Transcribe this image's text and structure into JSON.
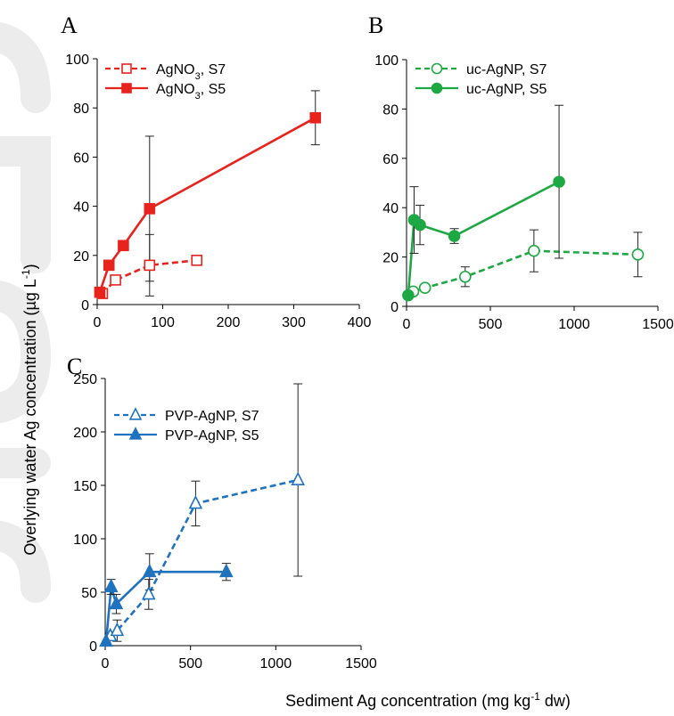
{
  "figure": {
    "y_axis_title": "Overlying water Ag concentration (µg L",
    "y_axis_title_sup": "-1",
    "y_axis_title_end": ")",
    "x_axis_title": "Sediment Ag concentration (mg kg",
    "x_axis_title_sup": "-1",
    "x_axis_title_end": " dw)"
  },
  "chart_data": [
    {
      "id": "A",
      "panel_label": "A",
      "type": "scatter",
      "xlim": [
        0,
        400
      ],
      "ylim": [
        0,
        100
      ],
      "xticks": [
        0,
        100,
        200,
        300,
        400
      ],
      "yticks": [
        0,
        20,
        40,
        60,
        80,
        100
      ],
      "xtick_labels": [
        "0",
        "100",
        "200",
        "300",
        "400"
      ],
      "ytick_labels": [
        "0",
        "20",
        "40",
        "60",
        "80",
        "100"
      ],
      "color": "#e8231e",
      "series": [
        {
          "name": "AgNO",
          "name_sub": "3",
          "name_suffix": ", S7",
          "marker": "square",
          "filled": false,
          "dashed": true,
          "points": [
            {
              "x": 8,
              "y": 4.5
            },
            {
              "x": 28,
              "y": 10
            },
            {
              "x": 80,
              "y": 16,
              "err_lo": 12.5,
              "err_hi": 12.5
            },
            {
              "x": 152,
              "y": 18
            }
          ]
        },
        {
          "name": "AgNO",
          "name_sub": "3",
          "name_suffix": ", S5",
          "marker": "square",
          "filled": true,
          "dashed": false,
          "points": [
            {
              "x": 4,
              "y": 5
            },
            {
              "x": 18,
              "y": 16
            },
            {
              "x": 40,
              "y": 24
            },
            {
              "x": 80,
              "y": 39,
              "err_lo": 29.5,
              "err_hi": 29.5
            },
            {
              "x": 333,
              "y": 76,
              "err_lo": 11,
              "err_hi": 11
            }
          ]
        }
      ]
    },
    {
      "id": "B",
      "panel_label": "B",
      "type": "scatter",
      "xlim": [
        0,
        1500
      ],
      "ylim": [
        0,
        100
      ],
      "xticks": [
        0,
        500,
        1000,
        1500
      ],
      "yticks": [
        0,
        20,
        40,
        60,
        80,
        100
      ],
      "xtick_labels": [
        "0",
        "500",
        "1000",
        "1500"
      ],
      "ytick_labels": [
        "0",
        "20",
        "40",
        "60",
        "80",
        "100"
      ],
      "color": "#1ea843",
      "series": [
        {
          "name": "uc-AgNP",
          "name_sub": "",
          "name_suffix": ", S7",
          "marker": "circle",
          "filled": false,
          "dashed": true,
          "points": [
            {
              "x": 40,
              "y": 6
            },
            {
              "x": 110,
              "y": 7.5
            },
            {
              "x": 350,
              "y": 12,
              "err_lo": 4,
              "err_hi": 4
            },
            {
              "x": 760,
              "y": 22.5,
              "err_lo": 8.5,
              "err_hi": 8.5
            },
            {
              "x": 1380,
              "y": 21,
              "err_lo": 9,
              "err_hi": 9
            }
          ]
        },
        {
          "name": "uc-AgNP",
          "name_sub": "",
          "name_suffix": ", S5",
          "marker": "circle",
          "filled": true,
          "dashed": false,
          "points": [
            {
              "x": 10,
              "y": 4.5
            },
            {
              "x": 45,
              "y": 35,
              "err_lo": 13.5,
              "err_hi": 13.5
            },
            {
              "x": 80,
              "y": 33,
              "err_lo": 8,
              "err_hi": 8
            },
            {
              "x": 285,
              "y": 28.5,
              "err_lo": 3,
              "err_hi": 3
            },
            {
              "x": 910,
              "y": 50.5,
              "err_lo": 31,
              "err_hi": 31
            }
          ]
        }
      ]
    },
    {
      "id": "C",
      "panel_label": "C",
      "type": "scatter",
      "xlim": [
        0,
        1500
      ],
      "ylim": [
        0,
        250
      ],
      "xticks": [
        0,
        500,
        1000,
        1500
      ],
      "yticks": [
        0,
        50,
        100,
        150,
        200,
        250
      ],
      "xtick_labels": [
        "0",
        "500",
        "1000",
        "1500"
      ],
      "ytick_labels": [
        "0",
        "50",
        "100",
        "150",
        "200",
        "250"
      ],
      "color": "#1f72be",
      "series": [
        {
          "name": "PVP-AgNP",
          "name_sub": "",
          "name_suffix": ", S7",
          "marker": "triangle",
          "filled": false,
          "dashed": true,
          "points": [
            {
              "x": 30,
              "y": 9
            },
            {
              "x": 70,
              "y": 14,
              "err_lo": 10,
              "err_hi": 10
            },
            {
              "x": 255,
              "y": 48,
              "err_lo": 14,
              "err_hi": 14
            },
            {
              "x": 530,
              "y": 133,
              "err_lo": 21,
              "err_hi": 21
            },
            {
              "x": 1130,
              "y": 155,
              "err_lo": 90,
              "err_hi": 90
            }
          ]
        },
        {
          "name": "PVP-AgNP",
          "name_sub": "",
          "name_suffix": ", S5",
          "marker": "triangle",
          "filled": true,
          "dashed": false,
          "points": [
            {
              "x": 5,
              "y": 4
            },
            {
              "x": 35,
              "y": 55,
              "err_lo": 7,
              "err_hi": 7
            },
            {
              "x": 65,
              "y": 39,
              "err_lo": 9,
              "err_hi": 9
            },
            {
              "x": 260,
              "y": 69,
              "err_lo": 17,
              "err_hi": 17
            },
            {
              "x": 710,
              "y": 69,
              "err_lo": 8,
              "err_hi": 8
            }
          ]
        }
      ]
    }
  ]
}
